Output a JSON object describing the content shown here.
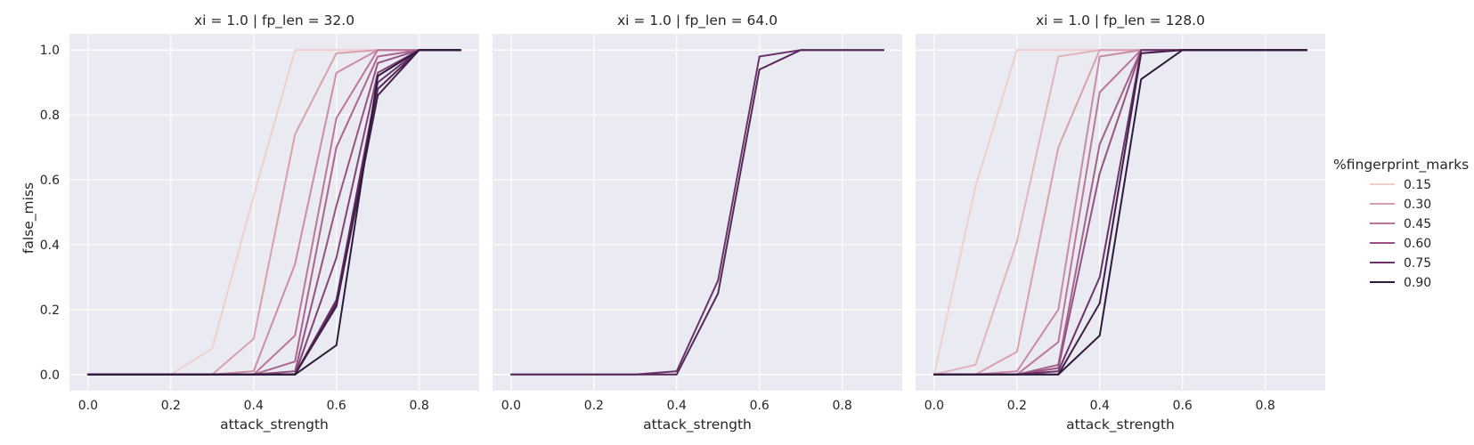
{
  "chart_data": {
    "type": "line",
    "facet_style": "grid",
    "x_ticks": [
      0.0,
      0.2,
      0.4,
      0.6,
      0.8
    ],
    "y_ticks": [
      0.0,
      0.2,
      0.4,
      0.6,
      0.8,
      1.0
    ],
    "x_tick_labels": [
      "0.0",
      "0.2",
      "0.4",
      "0.6",
      "0.8"
    ],
    "y_tick_labels": [
      "0.0",
      "0.2",
      "0.4",
      "0.6",
      "0.8",
      "1.0"
    ],
    "xlim": [
      -0.045,
      0.945
    ],
    "ylim": [
      -0.05,
      1.05
    ],
    "xlabel": "attack_strength",
    "ylabel": "false_miss",
    "legend": {
      "title": "%fingerprint_marks",
      "placement": "center-right",
      "entries": [
        {
          "label": "0.15",
          "color": "#efd0cc"
        },
        {
          "label": "0.30",
          "color": "#d9a0b0"
        },
        {
          "label": "0.45",
          "color": "#bc7798"
        },
        {
          "label": "0.60",
          "color": "#975283"
        },
        {
          "label": "0.75",
          "color": "#6c336a"
        },
        {
          "label": "0.90",
          "color": "#2f1a3e"
        }
      ]
    },
    "panels": [
      {
        "title": "xi = 1.0 | fp_len = 32.0",
        "x": [
          0.0,
          0.1,
          0.2,
          0.3,
          0.4,
          0.5,
          0.6,
          0.7,
          0.8,
          0.9
        ],
        "series": [
          {
            "name": "0.15",
            "color": "#efd0cc",
            "values": [
              0,
              0,
              0,
              0.08,
              0.55,
              1.0,
              1.0,
              1.0,
              1.0,
              1.0
            ]
          },
          {
            "name": "0.30",
            "color": "#d9a0b0",
            "values": [
              0,
              0,
              0,
              0,
              0.11,
              0.74,
              0.99,
              1.0,
              1.0,
              1.0
            ]
          },
          {
            "name": "0.30",
            "color": "#cf8ca6",
            "values": [
              0,
              0,
              0,
              0,
              0.01,
              0.34,
              0.93,
              1.0,
              1.0,
              1.0
            ]
          },
          {
            "name": "0.45",
            "color": "#bc7798",
            "values": [
              0,
              0,
              0,
              0,
              0.0,
              0.12,
              0.79,
              1.0,
              1.0,
              1.0
            ]
          },
          {
            "name": "0.45",
            "color": "#ab6590",
            "values": [
              0,
              0,
              0,
              0,
              0.0,
              0.04,
              0.7,
              0.98,
              1.0,
              1.0
            ]
          },
          {
            "name": "0.60",
            "color": "#975283",
            "values": [
              0,
              0,
              0,
              0,
              0.0,
              0.01,
              0.52,
              0.96,
              1.0,
              1.0
            ]
          },
          {
            "name": "0.60",
            "color": "#834277",
            "values": [
              0,
              0,
              0,
              0,
              0.0,
              0.0,
              0.36,
              0.93,
              1.0,
              1.0
            ]
          },
          {
            "name": "0.75",
            "color": "#6c336a",
            "values": [
              0,
              0,
              0,
              0,
              0.0,
              0.0,
              0.23,
              0.9,
              1.0,
              1.0
            ]
          },
          {
            "name": "0.75",
            "color": "#562858",
            "values": [
              0,
              0,
              0,
              0,
              0.0,
              0.0,
              0.22,
              0.88,
              1.0,
              1.0
            ]
          },
          {
            "name": "0.90",
            "color": "#402046",
            "values": [
              0,
              0,
              0,
              0,
              0.0,
              0.0,
              0.21,
              0.86,
              1.0,
              1.0
            ]
          },
          {
            "name": "0.90",
            "color": "#2f1a3e",
            "values": [
              0,
              0,
              0,
              0,
              0.0,
              0.0,
              0.09,
              0.92,
              1.0,
              1.0
            ]
          }
        ]
      },
      {
        "title": "xi = 1.0 | fp_len = 64.0",
        "x": [
          0.0,
          0.1,
          0.2,
          0.3,
          0.4,
          0.5,
          0.6,
          0.7,
          0.8,
          0.9
        ],
        "series": [
          {
            "name": "0.75",
            "color": "#6c336a",
            "values": [
              0,
              0,
              0,
              0,
              0.01,
              0.29,
              0.98,
              1.0,
              1.0,
              1.0
            ]
          },
          {
            "name": "0.75",
            "color": "#562858",
            "values": [
              0,
              0,
              0,
              0,
              0.0,
              0.25,
              0.94,
              1.0,
              1.0,
              1.0
            ]
          }
        ]
      },
      {
        "title": "xi = 1.0 | fp_len = 128.0",
        "x": [
          0.0,
          0.1,
          0.2,
          0.3,
          0.4,
          0.5,
          0.6,
          0.7,
          0.8,
          0.9
        ],
        "series": [
          {
            "name": "0.15",
            "color": "#efd0cc",
            "values": [
              0,
              0.58,
              1.0,
              1.0,
              1.0,
              1.0,
              1.0,
              1.0,
              1.0,
              1.0
            ]
          },
          {
            "name": "0.30",
            "color": "#e2b4be",
            "values": [
              0,
              0.03,
              0.41,
              0.98,
              1.0,
              1.0,
              1.0,
              1.0,
              1.0,
              1.0
            ]
          },
          {
            "name": "0.30",
            "color": "#d9a0b0",
            "values": [
              0,
              0.0,
              0.07,
              0.7,
              1.0,
              1.0,
              1.0,
              1.0,
              1.0,
              1.0
            ]
          },
          {
            "name": "0.45",
            "color": "#c98aa5",
            "values": [
              0,
              0.0,
              0.01,
              0.2,
              0.98,
              1.0,
              1.0,
              1.0,
              1.0,
              1.0
            ]
          },
          {
            "name": "0.45",
            "color": "#bc7798",
            "values": [
              0,
              0.0,
              0.0,
              0.1,
              0.87,
              1.0,
              1.0,
              1.0,
              1.0,
              1.0
            ]
          },
          {
            "name": "0.60",
            "color": "#a3628c",
            "values": [
              0,
              0.0,
              0.0,
              0.03,
              0.71,
              1.0,
              1.0,
              1.0,
              1.0,
              1.0
            ]
          },
          {
            "name": "0.60",
            "color": "#975283",
            "values": [
              0,
              0.0,
              0.0,
              0.02,
              0.62,
              1.0,
              1.0,
              1.0,
              1.0,
              1.0
            ]
          },
          {
            "name": "0.75",
            "color": "#6c336a",
            "values": [
              0,
              0.0,
              0.0,
              0.01,
              0.3,
              1.0,
              1.0,
              1.0,
              1.0,
              1.0
            ]
          },
          {
            "name": "0.90",
            "color": "#402046",
            "values": [
              0,
              0.0,
              0.0,
              0.0,
              0.22,
              0.99,
              1.0,
              1.0,
              1.0,
              1.0
            ]
          },
          {
            "name": "0.90",
            "color": "#2f1a3e",
            "values": [
              0,
              0.0,
              0.0,
              0.0,
              0.12,
              0.91,
              1.0,
              1.0,
              1.0,
              1.0
            ]
          }
        ]
      }
    ]
  }
}
